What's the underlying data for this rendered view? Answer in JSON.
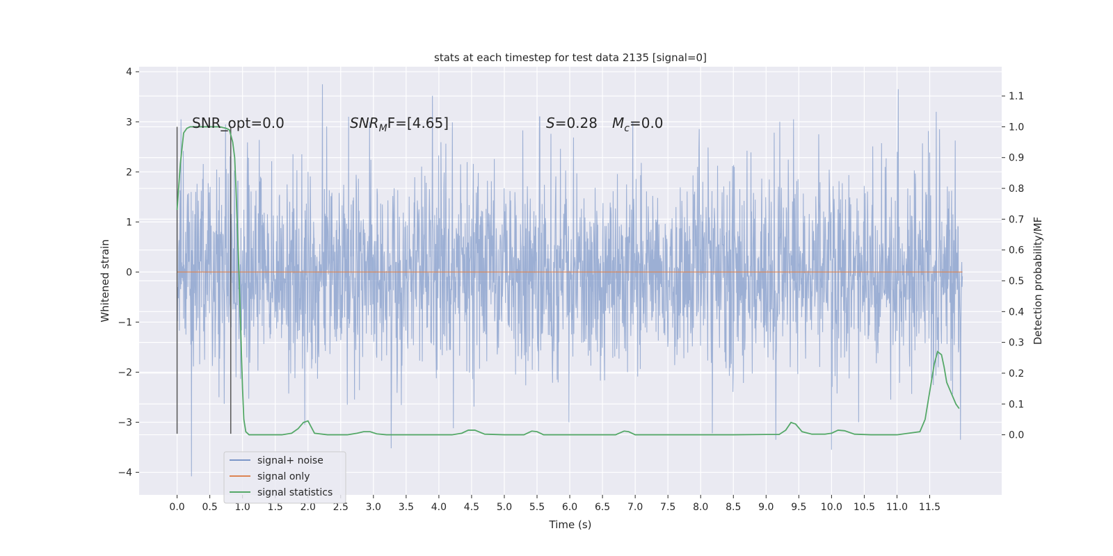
{
  "chart_data": {
    "type": "line",
    "title": "stats at each timestep for test data 2135 [signal=0]",
    "xlabel": "Time (s)",
    "ylabel": "Whitened strain",
    "ylabel_right": "Detection probability/MF",
    "xlim": [
      -0.58,
      12.6
    ],
    "ylim": [
      -4.45,
      4.1
    ],
    "ylim_right": [
      -0.195,
      1.195
    ],
    "x_ticks": [
      0.0,
      0.5,
      1.0,
      1.5,
      2.0,
      2.5,
      3.0,
      3.5,
      4.0,
      4.5,
      5.0,
      5.5,
      6.0,
      6.5,
      7.0,
      7.5,
      8.0,
      8.5,
      9.0,
      9.5,
      10.0,
      10.5,
      11.0,
      11.5
    ],
    "x_tick_labels": [
      "0.0",
      "0.5",
      "1.0",
      "1.5",
      "2.0",
      "2.5",
      "3.0",
      "3.5",
      "4.0",
      "4.5",
      "5.0",
      "5.5",
      "6.0",
      "6.5",
      "7.0",
      "7.5",
      "8.0",
      "8.5",
      "9.0",
      "9.5",
      "10.0",
      "10.5",
      "11.0",
      "11.5"
    ],
    "y_ticks": [
      -4,
      -3,
      -2,
      -1,
      0,
      1,
      2,
      3,
      4
    ],
    "y_tick_labels": [
      "−4",
      "−3",
      "−2",
      "−1",
      "0",
      "1",
      "2",
      "3",
      "4"
    ],
    "y_ticks_right": [
      0.0,
      0.1,
      0.2,
      0.3,
      0.4,
      0.5,
      0.6,
      0.7,
      0.8,
      0.9,
      1.0,
      1.1
    ],
    "y_tick_labels_right": [
      "0.0",
      "0.1",
      "0.2",
      "0.3",
      "0.4",
      "0.5",
      "0.6",
      "0.7",
      "0.8",
      "0.9",
      "1.0",
      "1.1"
    ],
    "grid": true,
    "legend_position": "lower-left",
    "annotations": {
      "snr_opt": "SNR_opt=0.0",
      "snr_mf_main": "SNR",
      "snr_mf_sub": "M",
      "snr_mf_rest": "F=[4.65]",
      "s_main": "S",
      "s_rest": "=0.28",
      "mc_main": "M",
      "mc_sub": "c",
      "mc_rest": "=0.0"
    },
    "vertical_markers": [
      {
        "x": 0.0,
        "y_range": [
          -3.23,
          2.9
        ]
      },
      {
        "x": 0.82,
        "y_range": [
          -3.23,
          2.9
        ]
      }
    ],
    "series": [
      {
        "name": "signal+ noise",
        "color": "#7b96c8",
        "duration": 12.0,
        "typical_amplitude": 1.0,
        "peaks": [
          {
            "x": 0.06,
            "y": 3.05
          },
          {
            "x": 0.22,
            "y": -4.08
          },
          {
            "x": 1.95,
            "y": -3.05
          },
          {
            "x": 2.22,
            "y": 3.75
          },
          {
            "x": 2.62,
            "y": 3.1
          },
          {
            "x": 3.27,
            "y": -3.52
          },
          {
            "x": 3.9,
            "y": 3.52
          },
          {
            "x": 4.22,
            "y": -3.12
          },
          {
            "x": 5.54,
            "y": 3.1
          },
          {
            "x": 8.18,
            "y": -3.22
          },
          {
            "x": 9.15,
            "y": -3.35
          },
          {
            "x": 9.42,
            "y": 3.05
          },
          {
            "x": 10.0,
            "y": -3.55
          },
          {
            "x": 11.02,
            "y": 3.65
          },
          {
            "x": 11.6,
            "y": 3.2
          },
          {
            "x": 11.97,
            "y": -3.35
          }
        ]
      },
      {
        "name": "signal only",
        "color": "#dd8452",
        "x": [
          0.0,
          12.0
        ],
        "y": [
          0.0,
          0.0
        ]
      },
      {
        "name": "signal statistics",
        "color": "#55a868",
        "axis": "right",
        "x": [
          0.0,
          0.05,
          0.1,
          0.15,
          0.2,
          0.3,
          0.5,
          0.65,
          0.75,
          0.8,
          0.85,
          0.88,
          0.9,
          0.95,
          1.0,
          1.02,
          1.05,
          1.1,
          1.3,
          1.6,
          1.75,
          1.85,
          1.93,
          2.0,
          2.1,
          2.3,
          2.6,
          2.75,
          2.85,
          2.95,
          3.05,
          3.2,
          3.5,
          4.2,
          4.35,
          4.45,
          4.55,
          4.7,
          5.0,
          5.3,
          5.42,
          5.5,
          5.6,
          6.0,
          6.7,
          6.83,
          6.9,
          7.0,
          7.2,
          8.0,
          8.5,
          9.0,
          9.2,
          9.3,
          9.38,
          9.45,
          9.55,
          9.7,
          9.9,
          10.0,
          10.1,
          10.2,
          10.35,
          10.6,
          11.0,
          11.35,
          11.43,
          11.5,
          11.57,
          11.62,
          11.68,
          11.72,
          11.76,
          11.82,
          11.9,
          11.95
        ],
        "y": [
          0.73,
          0.88,
          0.98,
          0.995,
          1.0,
          1.0,
          1.0,
          1.0,
          0.995,
          0.99,
          0.95,
          0.9,
          0.8,
          0.5,
          0.15,
          0.05,
          0.01,
          0.0,
          0.0,
          0.0,
          0.005,
          0.02,
          0.04,
          0.045,
          0.005,
          0.0,
          0.0,
          0.005,
          0.01,
          0.01,
          0.003,
          0.0,
          0.0,
          0.0,
          0.005,
          0.015,
          0.015,
          0.002,
          0.0,
          0.0,
          0.012,
          0.01,
          0.0,
          0.0,
          0.0,
          0.012,
          0.01,
          0.0,
          0.0,
          0.0,
          0.0,
          0.001,
          0.001,
          0.015,
          0.04,
          0.035,
          0.01,
          0.002,
          0.002,
          0.005,
          0.015,
          0.013,
          0.002,
          0.0,
          0.0,
          0.01,
          0.05,
          0.14,
          0.23,
          0.27,
          0.26,
          0.22,
          0.17,
          0.14,
          0.1,
          0.085
        ]
      }
    ]
  }
}
